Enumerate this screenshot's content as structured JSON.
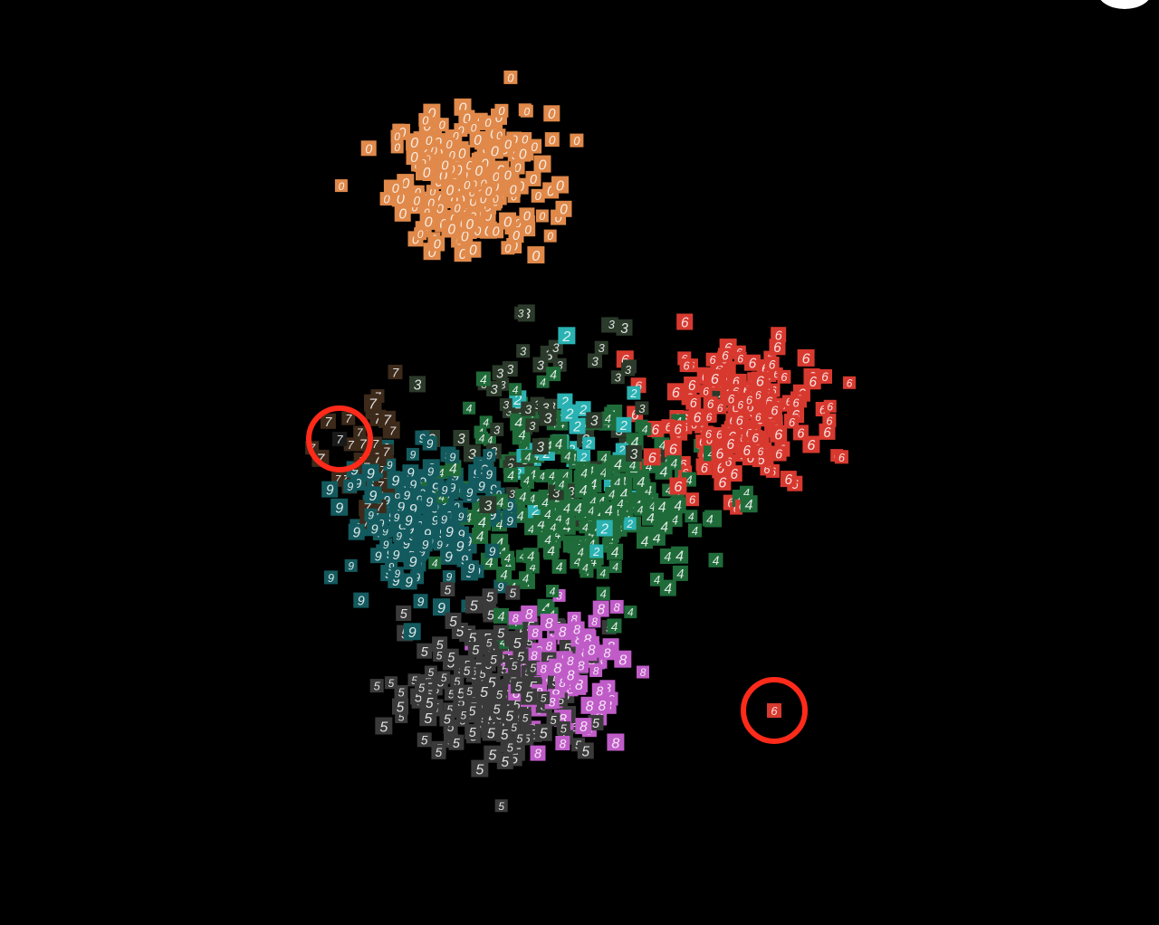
{
  "chart_data": {
    "type": "scatter",
    "title": "",
    "xlabel": "",
    "ylabel": "",
    "grid": false,
    "legend": "none",
    "background": "#000000",
    "marker": "digit-thumbnail",
    "xlim": [
      0,
      100
    ],
    "ylim": [
      0,
      100
    ],
    "series": [
      {
        "label": "0",
        "color": "#e0894a",
        "center": [
          38,
          81
        ],
        "spread": [
          8,
          7
        ],
        "count": 230
      },
      {
        "label": "6",
        "color": "#d8392f",
        "center": [
          67,
          55
        ],
        "spread": [
          8,
          7
        ],
        "count": 200
      },
      {
        "label": "4",
        "color": "#1f6b39",
        "center": [
          50,
          45
        ],
        "spread": [
          13,
          9
        ],
        "count": 260
      },
      {
        "label": "9",
        "color": "#135a5e",
        "center": [
          33,
          44
        ],
        "spread": [
          8,
          7
        ],
        "count": 180
      },
      {
        "label": "5",
        "color": "#3a3a3a",
        "center": [
          41,
          25
        ],
        "spread": [
          9,
          7
        ],
        "count": 220
      },
      {
        "label": "8",
        "color": "#c05cc8",
        "center": [
          48,
          27
        ],
        "spread": [
          6,
          6
        ],
        "count": 110
      },
      {
        "label": "3",
        "color": "#2b3a2a",
        "center": [
          46,
          55
        ],
        "spread": [
          10,
          10
        ],
        "count": 60
      },
      {
        "label": "2",
        "color": "#2ab2b2",
        "center": [
          50,
          50
        ],
        "spread": [
          9,
          9
        ],
        "count": 30
      },
      {
        "label": "7",
        "color": "#3d2a1a",
        "center": [
          27,
          49
        ],
        "spread": [
          4,
          6
        ],
        "count": 40
      }
    ],
    "highlighted_points": [
      {
        "label": "7",
        "x": 23.5,
        "y": 52.5
      },
      {
        "label": "6",
        "x": 71.5,
        "y": 22.5
      }
    ],
    "highlight_color": "#ff2a1a"
  },
  "icons": {
    "corner_control": "circle-button"
  }
}
